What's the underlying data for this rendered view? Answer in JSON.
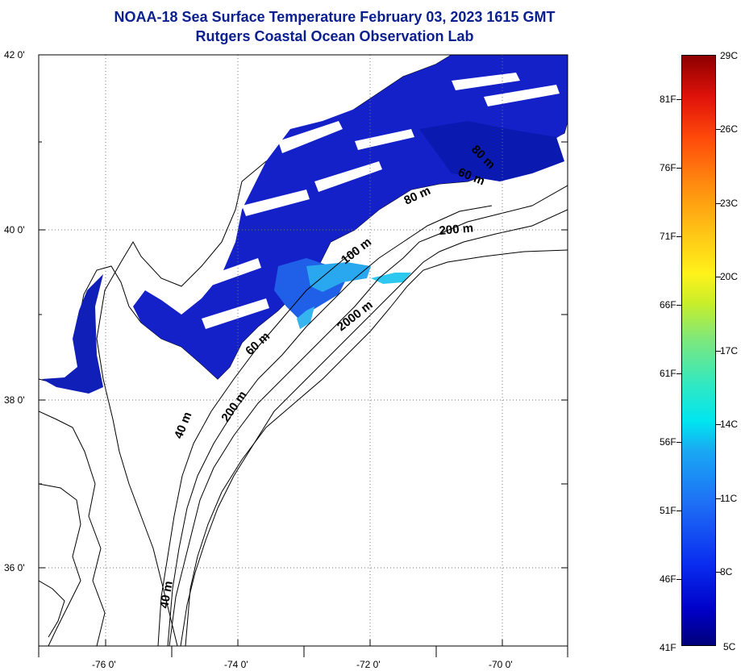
{
  "title": {
    "line1": "NOAA-18 Sea Surface Temperature February 03, 2023 1615 GMT",
    "line2": "Rutgers Coastal Ocean Observation Lab"
  },
  "map": {
    "lat_labels": [
      {
        "lat": 42,
        "label": "42 0'"
      },
      {
        "lat": 40,
        "label": "40 0'"
      },
      {
        "lat": 38,
        "label": "38 0'"
      },
      {
        "lat": 36,
        "label": "36 0'"
      }
    ],
    "lon_labels": [
      {
        "lon": -76,
        "label": "-76 0'"
      },
      {
        "lon": -74,
        "label": "-74 0'"
      },
      {
        "lon": -72,
        "label": "-72 0'"
      },
      {
        "lon": -70,
        "label": "-70 0'"
      }
    ],
    "contour_labels": [
      {
        "text": "80 m"
      },
      {
        "text": "60 m"
      },
      {
        "text": "80 m"
      },
      {
        "text": "200 m"
      },
      {
        "text": "100 m"
      },
      {
        "text": "2000 m"
      },
      {
        "text": "60 m"
      },
      {
        "text": "200 m"
      },
      {
        "text": "40 m"
      },
      {
        "text": "40 m"
      }
    ]
  },
  "colorbar": {
    "fahrenheit_labels": [
      "81F",
      "76F",
      "71F",
      "66F",
      "61F",
      "56F",
      "51F",
      "46F",
      "41F"
    ],
    "celsius_labels": [
      "29C",
      "26C",
      "23C",
      "20C",
      "17C",
      "14C",
      "11C",
      "8C",
      "5C"
    ]
  }
}
